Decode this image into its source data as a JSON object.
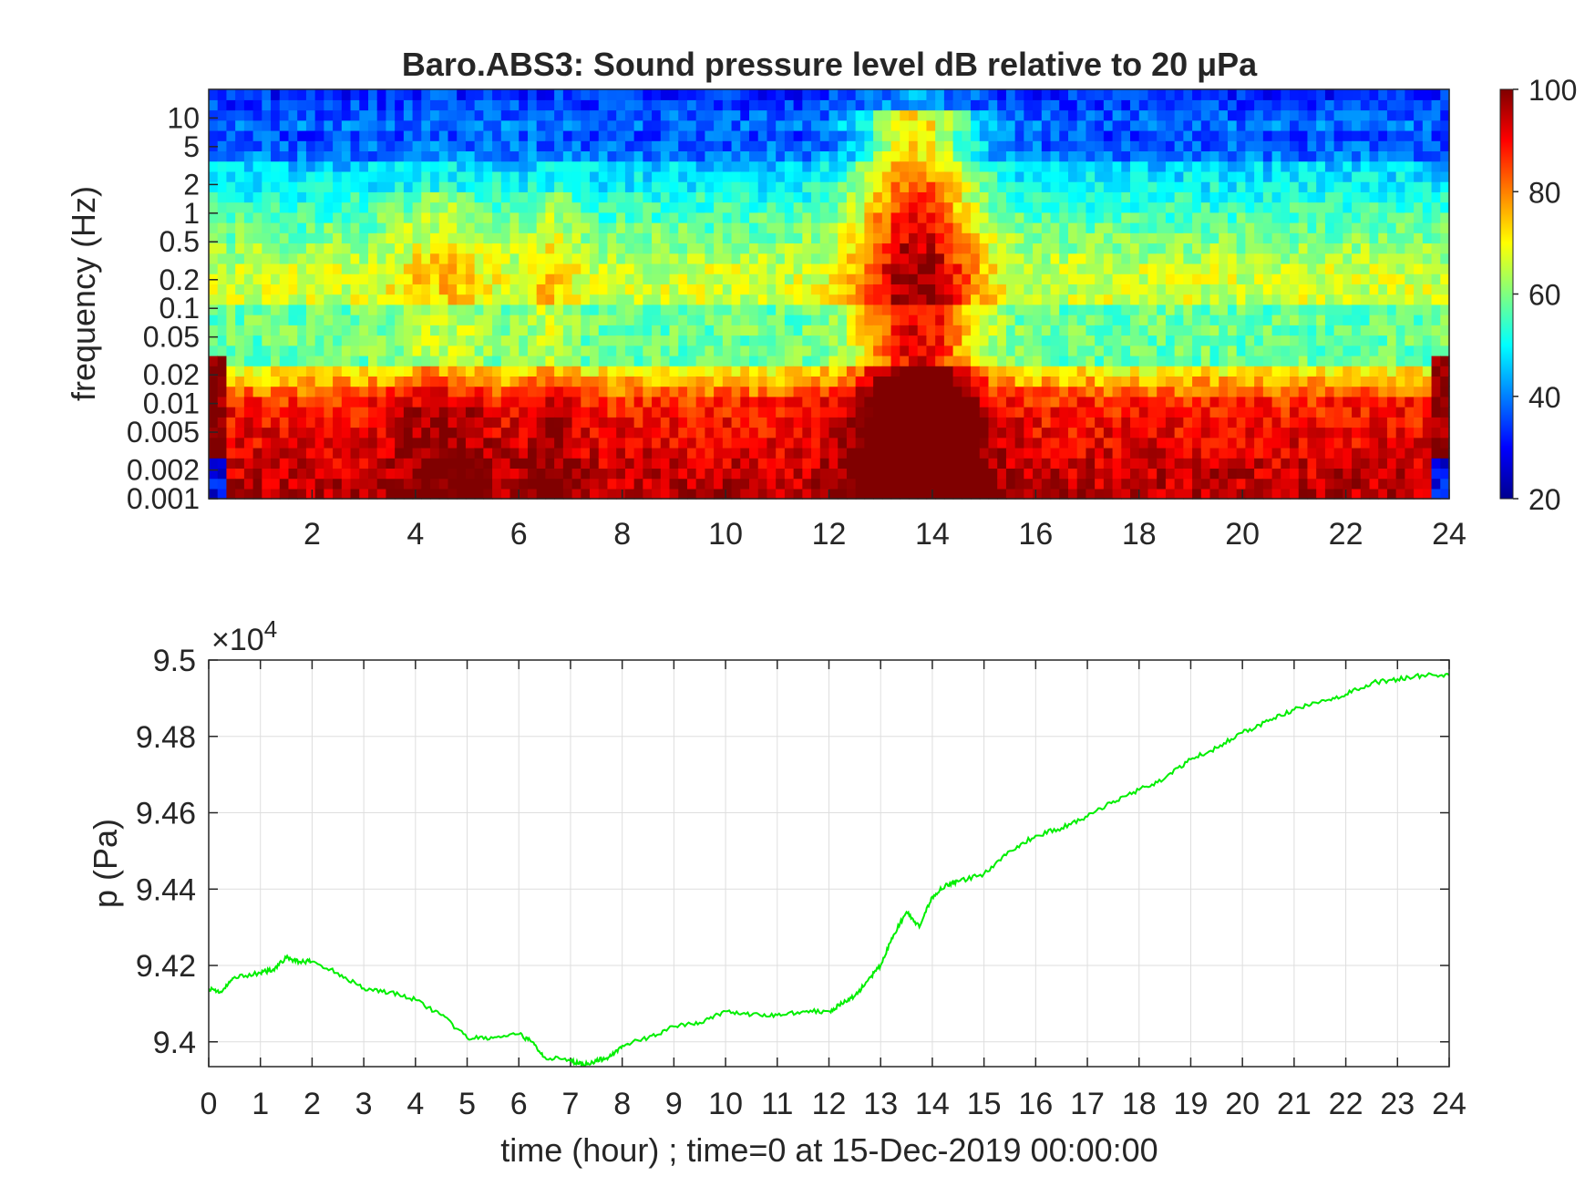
{
  "chart_data": [
    {
      "type": "heatmap",
      "title": "Baro.ABS3: Sound pressure level dB relative to 20 μPa",
      "ylabel": "frequency (Hz)",
      "xlabel": "",
      "x_ticks": [
        2,
        4,
        6,
        8,
        10,
        12,
        14,
        16,
        18,
        20,
        22,
        24
      ],
      "xlim": [
        0,
        24
      ],
      "y_scale": "log",
      "ylim": [
        0.001,
        20
      ],
      "y_ticks": [
        0.001,
        0.002,
        0.005,
        0.01,
        0.02,
        0.05,
        0.1,
        0.2,
        0.5,
        1,
        2,
        5,
        10
      ],
      "y_tick_labels": [
        "0.001",
        "0.002",
        "0.005",
        "0.01",
        "0.02",
        "0.05",
        "0.1",
        "0.2",
        "0.5",
        "1",
        "2",
        "5",
        "10"
      ],
      "colormap": "jet",
      "colorbar": {
        "ticks": [
          20,
          40,
          60,
          80,
          100
        ],
        "range": [
          20,
          100
        ]
      },
      "grid": false
    },
    {
      "type": "line",
      "xlabel": "time (hour) ; time=0 at 15-Dec-2019 00:00:00",
      "ylabel": "p (Pa)",
      "y_multiplier": "×10",
      "y_multiplier_exp": "4",
      "xlim": [
        0,
        24
      ],
      "ylim": [
        9.3935,
        9.5
      ],
      "x_ticks": [
        0,
        1,
        2,
        3,
        4,
        5,
        6,
        7,
        8,
        9,
        10,
        11,
        12,
        13,
        14,
        15,
        16,
        17,
        18,
        19,
        20,
        21,
        22,
        23,
        24
      ],
      "y_ticks": [
        9.4,
        9.42,
        9.44,
        9.46,
        9.48,
        9.5
      ],
      "y_tick_labels": [
        "9.4",
        "9.42",
        "9.44",
        "9.46",
        "9.48",
        "9.5"
      ],
      "grid": true,
      "series": [
        {
          "color": "#00ee00",
          "x": [
            0,
            0.25,
            0.5,
            1.0,
            1.25,
            1.5,
            1.75,
            2.0,
            2.5,
            3.0,
            3.5,
            4.0,
            4.5,
            5.0,
            5.5,
            6.0,
            6.25,
            6.5,
            7.0,
            7.25,
            7.5,
            7.75,
            8.0,
            8.5,
            9.0,
            9.5,
            10.0,
            10.5,
            11.0,
            11.5,
            12.0,
            12.25,
            12.5,
            12.75,
            13.0,
            13.25,
            13.5,
            13.75,
            14.0,
            14.25,
            14.5,
            15.0,
            15.5,
            16.0,
            16.5,
            17.0,
            17.5,
            18.0,
            18.5,
            19.0,
            19.5,
            20.0,
            20.5,
            21.0,
            21.5,
            22.0,
            22.5,
            23.0,
            23.5,
            24.0
          ],
          "y": [
            9.414,
            9.413,
            9.417,
            9.418,
            9.419,
            9.422,
            9.421,
            9.421,
            9.418,
            9.414,
            9.413,
            9.411,
            9.407,
            9.401,
            9.401,
            9.402,
            9.4,
            9.396,
            9.395,
            9.394,
            9.395,
            9.396,
            9.399,
            9.401,
            9.404,
            9.405,
            9.408,
            9.407,
            9.407,
            9.408,
            9.408,
            9.41,
            9.412,
            9.416,
            9.42,
            9.428,
            9.434,
            9.43,
            9.438,
            9.441,
            9.442,
            9.444,
            9.45,
            9.454,
            9.456,
            9.459,
            9.463,
            9.466,
            9.469,
            9.474,
            9.477,
            9.481,
            9.484,
            9.487,
            9.489,
            9.491,
            9.494,
            9.495,
            9.496,
            9.496
          ]
        }
      ]
    }
  ]
}
